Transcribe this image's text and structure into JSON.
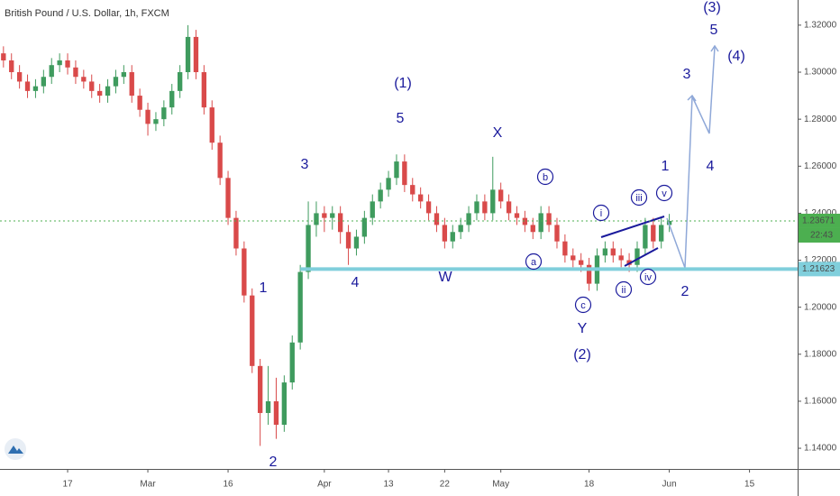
{
  "chart_data": {
    "type": "candlestick",
    "title": "British Pound / U.S. Dollar, 1h, FXCM",
    "x": [
      -8,
      -7,
      -6,
      -5,
      -4,
      -3,
      -2,
      -1,
      0,
      1,
      2,
      3,
      4,
      5,
      6,
      7,
      8,
      9,
      10,
      11,
      12,
      13,
      14,
      15,
      16,
      17,
      18,
      19,
      20,
      21,
      22,
      23,
      24,
      25,
      26,
      27,
      28,
      29,
      30,
      31,
      32,
      33,
      34,
      35,
      36,
      37,
      38,
      39,
      40,
      41,
      42,
      43,
      44,
      45,
      46,
      47,
      48,
      49,
      50,
      51,
      52,
      53,
      54,
      55,
      56,
      57,
      58,
      59,
      60,
      61,
      62,
      63,
      64,
      65,
      66,
      67,
      68,
      69,
      70,
      71,
      72,
      73,
      74,
      75
    ],
    "open": [
      1.308,
      1.305,
      1.3,
      1.296,
      1.292,
      1.294,
      1.298,
      1.303,
      1.305,
      1.302,
      1.298,
      1.296,
      1.292,
      1.29,
      1.294,
      1.298,
      1.3,
      1.29,
      1.284,
      1.278,
      1.28,
      1.285,
      1.292,
      1.3,
      1.315,
      1.3,
      1.285,
      1.27,
      1.255,
      1.238,
      1.225,
      1.205,
      1.175,
      1.155,
      1.16,
      1.15,
      1.168,
      1.185,
      1.215,
      1.235,
      1.24,
      1.238,
      1.24,
      1.232,
      1.225,
      1.23,
      1.238,
      1.245,
      1.25,
      1.255,
      1.262,
      1.252,
      1.248,
      1.245,
      1.24,
      1.235,
      1.228,
      1.232,
      1.235,
      1.24,
      1.245,
      1.24,
      1.25,
      1.245,
      1.24,
      1.238,
      1.235,
      1.232,
      1.24,
      1.235,
      1.228,
      1.222,
      1.22,
      1.218,
      1.21,
      1.222,
      1.225,
      1.222,
      1.22,
      1.218,
      1.225,
      1.235,
      1.228,
      1.235
    ],
    "high": [
      1.311,
      1.308,
      1.303,
      1.299,
      1.297,
      1.301,
      1.306,
      1.308,
      1.308,
      1.305,
      1.301,
      1.299,
      1.295,
      1.297,
      1.301,
      1.303,
      1.303,
      1.293,
      1.287,
      1.283,
      1.288,
      1.295,
      1.303,
      1.32,
      1.318,
      1.303,
      1.288,
      1.273,
      1.258,
      1.241,
      1.228,
      1.208,
      1.178,
      1.175,
      1.17,
      1.171,
      1.188,
      1.218,
      1.245,
      1.245,
      1.243,
      1.243,
      1.243,
      1.235,
      1.233,
      1.241,
      1.248,
      1.253,
      1.258,
      1.265,
      1.265,
      1.255,
      1.251,
      1.248,
      1.243,
      1.238,
      1.235,
      1.238,
      1.243,
      1.248,
      1.248,
      1.264,
      1.253,
      1.248,
      1.243,
      1.241,
      1.238,
      1.243,
      1.243,
      1.238,
      1.231,
      1.225,
      1.223,
      1.221,
      1.225,
      1.228,
      1.228,
      1.225,
      1.223,
      1.228,
      1.238,
      1.238,
      1.238,
      1.2397
    ],
    "low": [
      1.302,
      1.297,
      1.293,
      1.289,
      1.289,
      1.291,
      1.295,
      1.3,
      1.299,
      1.295,
      1.293,
      1.289,
      1.287,
      1.287,
      1.291,
      1.295,
      1.287,
      1.281,
      1.273,
      1.275,
      1.277,
      1.282,
      1.289,
      1.297,
      1.297,
      1.282,
      1.267,
      1.252,
      1.235,
      1.222,
      1.202,
      1.172,
      1.141,
      1.15,
      1.144,
      1.147,
      1.165,
      1.182,
      1.212,
      1.23,
      1.232,
      1.233,
      1.227,
      1.218,
      1.222,
      1.227,
      1.235,
      1.242,
      1.247,
      1.252,
      1.249,
      1.245,
      1.242,
      1.237,
      1.232,
      1.225,
      1.225,
      1.229,
      1.232,
      1.237,
      1.237,
      1.237,
      1.242,
      1.237,
      1.235,
      1.232,
      1.229,
      1.229,
      1.232,
      1.225,
      1.219,
      1.217,
      1.215,
      1.207,
      1.207,
      1.219,
      1.219,
      1.217,
      1.215,
      1.215,
      1.222,
      1.225,
      1.225,
      1.232
    ],
    "close": [
      1.305,
      1.3,
      1.296,
      1.292,
      1.294,
      1.298,
      1.303,
      1.305,
      1.302,
      1.298,
      1.296,
      1.292,
      1.29,
      1.294,
      1.298,
      1.3,
      1.29,
      1.284,
      1.278,
      1.28,
      1.285,
      1.292,
      1.3,
      1.315,
      1.3,
      1.285,
      1.27,
      1.255,
      1.238,
      1.225,
      1.205,
      1.175,
      1.155,
      1.16,
      1.15,
      1.168,
      1.185,
      1.215,
      1.235,
      1.24,
      1.238,
      1.24,
      1.232,
      1.225,
      1.23,
      1.238,
      1.245,
      1.25,
      1.255,
      1.262,
      1.252,
      1.248,
      1.245,
      1.24,
      1.235,
      1.228,
      1.232,
      1.235,
      1.24,
      1.245,
      1.24,
      1.25,
      1.245,
      1.24,
      1.238,
      1.235,
      1.232,
      1.24,
      1.235,
      1.228,
      1.222,
      1.22,
      1.218,
      1.21,
      1.222,
      1.225,
      1.222,
      1.22,
      1.218,
      1.225,
      1.235,
      1.228,
      1.235,
      1.23671
    ],
    "up_color": "#3f9b5e",
    "down_color": "#d94a4a",
    "xlim": [
      -8.43,
      91
    ],
    "xticks": [
      {
        "value": 0,
        "label": "17"
      },
      {
        "value": 10,
        "label": "Mar"
      },
      {
        "value": 20,
        "label": "16"
      },
      {
        "value": 32,
        "label": "Apr"
      },
      {
        "value": 40,
        "label": "13"
      },
      {
        "value": 47,
        "label": "22"
      },
      {
        "value": 54,
        "label": "May"
      },
      {
        "value": 65,
        "label": "18"
      },
      {
        "value": 75,
        "label": "Jun"
      },
      {
        "value": 85,
        "label": "15"
      }
    ],
    "ylim": [
      1.1312,
      1.3307
    ],
    "yticks": [
      {
        "value": 1.14,
        "label": "1.14000"
      },
      {
        "value": 1.16,
        "label": "1.16000"
      },
      {
        "value": 1.18,
        "label": "1.18000"
      },
      {
        "value": 1.2,
        "label": "1.20000"
      },
      {
        "value": 1.22,
        "label": "1.22000"
      },
      {
        "value": 1.24,
        "label": "1.24000"
      },
      {
        "value": 1.26,
        "label": "1.26000"
      },
      {
        "value": 1.28,
        "label": "1.28000"
      },
      {
        "value": 1.3,
        "label": "1.30000"
      },
      {
        "value": 1.32,
        "label": "1.32000"
      }
    ],
    "price_lines": [
      {
        "value": 1.23671,
        "color": "#4caf50",
        "dashed": true
      },
      {
        "value": 1.21623,
        "color": "#80cfdc",
        "dashed": false
      }
    ],
    "countdown": "22:43",
    "annotations": [
      "(3)",
      "5",
      "(4)",
      "3",
      "(1)",
      "5",
      "X",
      "3",
      "1",
      "4",
      "b",
      "iii",
      "v",
      "i",
      "a",
      "W",
      "4",
      "1",
      "ii",
      "iv",
      "2",
      "c",
      "Y",
      "(2)",
      "2"
    ]
  }
}
